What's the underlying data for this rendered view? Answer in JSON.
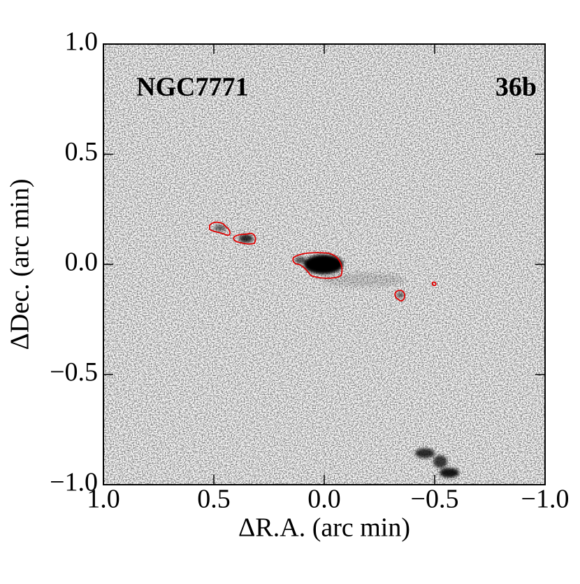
{
  "chart_data": {
    "type": "image",
    "annotations": [
      "NGC7771",
      "36b"
    ],
    "xlabel": "ΔR.A. (arc min)",
    "ylabel": "ΔDec. (arc min)",
    "xlim": [
      1.0,
      -1.0
    ],
    "ylim": [
      -1.0,
      1.0
    ],
    "xticks": [
      {
        "value": 1.0,
        "label": "1.0"
      },
      0.5,
      {
        "value": 0.0,
        "label": "0.0"
      },
      {
        "value": -0.5,
        "label": "−0.5"
      },
      {
        "value": -1.0,
        "label": "−1.0"
      }
    ],
    "yticks": [
      {
        "value": -1.0,
        "label": "−1.0"
      },
      {
        "value": -0.5,
        "label": "−0.5"
      },
      {
        "value": 0.0,
        "label": "0.0"
      },
      0.5,
      {
        "value": 1.0,
        "label": "1.0"
      }
    ],
    "contour_color": "#e00000"
  }
}
